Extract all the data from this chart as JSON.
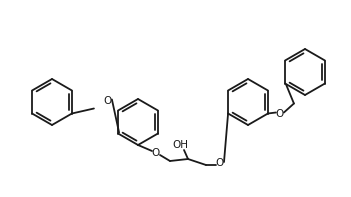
{
  "background_color": "#ffffff",
  "line_color": "#1a1a1a",
  "line_width": 1.3,
  "oh_label": "OH",
  "o_label": "O",
  "figsize": [
    3.51,
    1.97
  ],
  "dpi": 100
}
